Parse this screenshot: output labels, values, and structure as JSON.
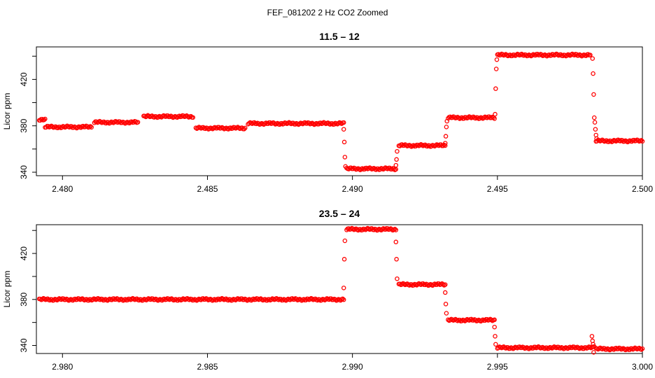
{
  "figure": {
    "title": "FEF_081202  2 Hz CO2 Zoomed"
  },
  "style": {
    "point_color": "#ff0000",
    "axis_color": "#000000"
  },
  "chart_data": [
    {
      "type": "scatter",
      "title": "11.5 – 12",
      "xlabel": "",
      "ylabel": "Licor ppm",
      "xlim": [
        2.4791,
        2.5
      ],
      "ylim": [
        337,
        448
      ],
      "xticks": [
        2.48,
        2.485,
        2.49,
        2.495,
        2.5
      ],
      "xtick_labels": [
        "2.480",
        "2.485",
        "2.490",
        "2.495",
        "2.500"
      ],
      "yticks": [
        340,
        360,
        380,
        400,
        420,
        440
      ],
      "ytick_labels": [
        "340",
        "",
        "380",
        "",
        "420",
        ""
      ],
      "grid": false,
      "marker": "open-circle",
      "segments": [
        {
          "x0": 2.4792,
          "x1": 2.4794,
          "y": 385
        },
        {
          "x0": 2.4794,
          "x1": 2.481,
          "y": 379
        },
        {
          "x0": 2.4811,
          "x1": 2.4826,
          "y": 383
        },
        {
          "x0": 2.4828,
          "x1": 2.4845,
          "y": 388
        },
        {
          "x0": 2.4846,
          "x1": 2.4863,
          "y": 378
        },
        {
          "x0": 2.4864,
          "x1": 2.4897,
          "y": 382
        },
        {
          "x0": 2.4898,
          "x1": 2.4915,
          "y": 343
        },
        {
          "x0": 2.4916,
          "x1": 2.4932,
          "y": 363
        },
        {
          "x0": 2.4933,
          "x1": 2.4949,
          "y": 387
        },
        {
          "x0": 2.495,
          "x1": 2.4982,
          "y": 441
        },
        {
          "x0": 2.4984,
          "x1": 2.5,
          "y": 367
        }
      ],
      "transition_points": [
        {
          "x": 2.4897,
          "y": 377
        },
        {
          "x": 2.48972,
          "y": 366
        },
        {
          "x": 2.48974,
          "y": 353
        },
        {
          "x": 2.48976,
          "y": 345
        },
        {
          "x": 2.4915,
          "y": 346
        },
        {
          "x": 2.49152,
          "y": 351
        },
        {
          "x": 2.49154,
          "y": 358
        },
        {
          "x": 2.4932,
          "y": 365
        },
        {
          "x": 2.49322,
          "y": 371
        },
        {
          "x": 2.49324,
          "y": 379
        },
        {
          "x": 2.49326,
          "y": 384
        },
        {
          "x": 2.49492,
          "y": 390
        },
        {
          "x": 2.49494,
          "y": 412
        },
        {
          "x": 2.49496,
          "y": 429
        },
        {
          "x": 2.49498,
          "y": 437
        },
        {
          "x": 2.49828,
          "y": 438
        },
        {
          "x": 2.4983,
          "y": 425
        },
        {
          "x": 2.49832,
          "y": 407
        },
        {
          "x": 2.49834,
          "y": 387
        },
        {
          "x": 2.49836,
          "y": 383
        },
        {
          "x": 2.49838,
          "y": 377
        },
        {
          "x": 2.4984,
          "y": 372
        },
        {
          "x": 2.49842,
          "y": 369
        }
      ]
    },
    {
      "type": "scatter",
      "title": "23.5 – 24",
      "xlabel": "",
      "ylabel": "Licor ppm",
      "xlim": [
        2.9791,
        3.0
      ],
      "ylim": [
        333,
        445
      ],
      "xticks": [
        2.98,
        2.985,
        2.99,
        2.995,
        3.0
      ],
      "xtick_labels": [
        "2.980",
        "2.985",
        "2.990",
        "2.995",
        "3.000"
      ],
      "yticks": [
        340,
        360,
        380,
        400,
        420,
        440
      ],
      "ytick_labels": [
        "340",
        "",
        "380",
        "",
        "420",
        ""
      ],
      "grid": false,
      "marker": "open-circle",
      "segments": [
        {
          "x0": 2.9792,
          "x1": 2.9897,
          "y": 380
        },
        {
          "x0": 2.9898,
          "x1": 2.9915,
          "y": 441
        },
        {
          "x0": 2.9916,
          "x1": 2.9932,
          "y": 393
        },
        {
          "x0": 2.9933,
          "x1": 2.9949,
          "y": 362
        },
        {
          "x0": 2.995,
          "x1": 2.9983,
          "y": 338
        },
        {
          "x0": 2.9984,
          "x1": 3.0,
          "y": 337
        }
      ],
      "transition_points": [
        {
          "x": 2.9897,
          "y": 390
        },
        {
          "x": 2.98972,
          "y": 415
        },
        {
          "x": 2.98974,
          "y": 431
        },
        {
          "x": 2.9915,
          "y": 430
        },
        {
          "x": 2.99152,
          "y": 415
        },
        {
          "x": 2.99154,
          "y": 398
        },
        {
          "x": 2.9932,
          "y": 386
        },
        {
          "x": 2.99322,
          "y": 376
        },
        {
          "x": 2.99324,
          "y": 368
        },
        {
          "x": 2.9949,
          "y": 356
        },
        {
          "x": 2.99492,
          "y": 348
        },
        {
          "x": 2.99494,
          "y": 341
        },
        {
          "x": 2.99826,
          "y": 348
        },
        {
          "x": 2.99828,
          "y": 344
        },
        {
          "x": 2.9983,
          "y": 341
        },
        {
          "x": 2.99832,
          "y": 334
        },
        {
          "x": 2.99834,
          "y": 339
        }
      ]
    }
  ]
}
